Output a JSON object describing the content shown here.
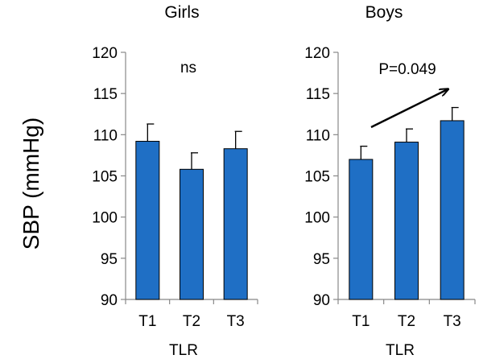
{
  "ylabel": "SBP (mmHg)",
  "chart_data": [
    {
      "type": "bar",
      "title": "Girls",
      "xlabel": "TLR",
      "ylabel": "SBP (mmHg)",
      "categories": [
        "T1",
        "T2",
        "T3"
      ],
      "values": [
        109.2,
        105.8,
        108.3
      ],
      "errors": [
        2.1,
        2.0,
        2.1
      ],
      "ylim": [
        90,
        120
      ],
      "yticks": [
        90,
        95,
        100,
        105,
        110,
        115,
        120
      ],
      "annotation": "ns",
      "bar_color": "#1f6fc5",
      "grid": false
    },
    {
      "type": "bar",
      "title": "Boys",
      "xlabel": "TLR",
      "ylabel": "SBP (mmHg)",
      "categories": [
        "T1",
        "T2",
        "T3"
      ],
      "values": [
        107.0,
        109.1,
        111.7
      ],
      "errors": [
        1.6,
        1.6,
        1.6
      ],
      "ylim": [
        90,
        120
      ],
      "yticks": [
        90,
        95,
        100,
        105,
        110,
        115,
        120
      ],
      "annotation": "P=0.049",
      "trend_arrow": true,
      "bar_color": "#1f6fc5",
      "grid": false
    }
  ]
}
